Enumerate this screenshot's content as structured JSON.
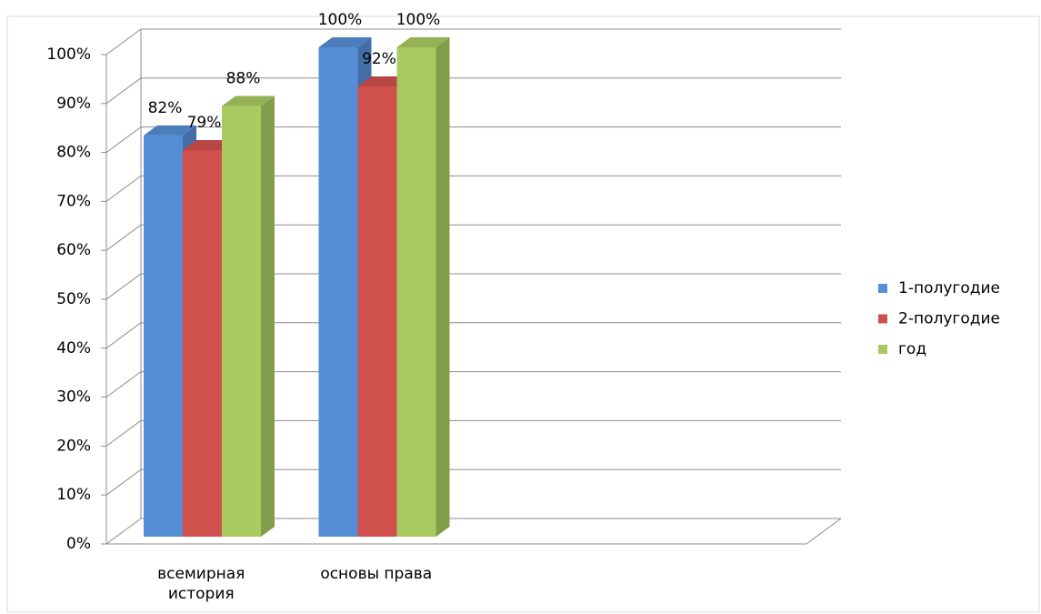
{
  "chart_data": {
    "type": "bar3d",
    "categories": [
      "всемирная история",
      "основы права",
      null,
      null
    ],
    "series": [
      {
        "name": "1-полугодие",
        "color": "#558ed5",
        "values": [
          82,
          100,
          null,
          null
        ],
        "value_labels": [
          "82%",
          "100%",
          null,
          null
        ]
      },
      {
        "name": "2-полугодие",
        "color": "#d0504d",
        "values": [
          79,
          92,
          null,
          null
        ],
        "value_labels": [
          "79%",
          "92%",
          null,
          null
        ]
      },
      {
        "name": "год",
        "color": "#a9c961",
        "values": [
          88,
          100,
          null,
          null
        ],
        "value_labels": [
          "88%",
          "100%",
          null,
          null
        ]
      }
    ],
    "ylim": [
      0,
      100
    ],
    "yticks": [
      {
        "value": 0,
        "label": "0%"
      },
      {
        "value": 10,
        "label": "10%"
      },
      {
        "value": 20,
        "label": "20%"
      },
      {
        "value": 30,
        "label": "30%"
      },
      {
        "value": 40,
        "label": "40%"
      },
      {
        "value": 50,
        "label": "50%"
      },
      {
        "value": 60,
        "label": "60%"
      },
      {
        "value": 70,
        "label": "70%"
      },
      {
        "value": 80,
        "label": "80%"
      },
      {
        "value": 90,
        "label": "90%"
      },
      {
        "value": 100,
        "label": "100%"
      }
    ],
    "grid": true,
    "legend": "right"
  }
}
